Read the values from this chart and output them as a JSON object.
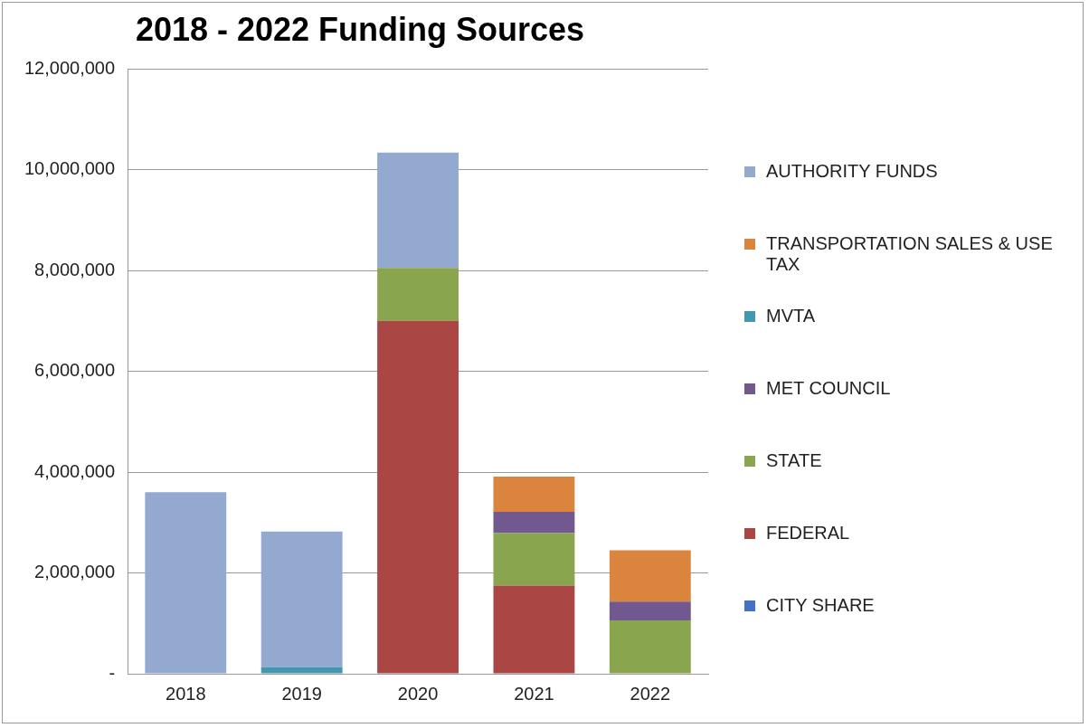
{
  "chart_data": {
    "type": "bar",
    "title": "2018 - 2022 Funding Sources",
    "stacked": true,
    "categories": [
      "2018",
      "2019",
      "2020",
      "2021",
      "2022"
    ],
    "series": [
      {
        "name": "CITY SHARE",
        "color": "#4472c4",
        "values": [
          0,
          0,
          0,
          0,
          0
        ]
      },
      {
        "name": "FEDERAL",
        "color": "#aa4643",
        "values": [
          0,
          0,
          7000000.0,
          1750000.0,
          0
        ]
      },
      {
        "name": "STATE",
        "color": "#89a54e",
        "values": [
          0,
          0,
          1050000.0,
          1040000.0,
          1060000.0
        ]
      },
      {
        "name": "MET COUNCIL",
        "color": "#71588f",
        "values": [
          0,
          0,
          0,
          420000.0,
          370000.0
        ]
      },
      {
        "name": "MVTA",
        "color": "#4198af",
        "values": [
          0,
          130000.0,
          0,
          0,
          0
        ]
      },
      {
        "name": "TRANSPORTATION SALES & USE TAX",
        "color": "#db843d",
        "values": [
          0,
          0,
          0,
          700000.0,
          1020000.0
        ]
      },
      {
        "name": "AUTHORITY FUNDS",
        "color": "#93a9cf",
        "values": [
          3600000.0,
          2690000.0,
          2290000.0,
          0,
          0
        ]
      }
    ],
    "ylim": [
      0,
      12000000
    ],
    "yticks": [
      {
        "value": 0,
        "label": "-"
      },
      {
        "value": 2000000,
        "label": "2,000,000"
      },
      {
        "value": 4000000,
        "label": "4,000,000"
      },
      {
        "value": 6000000,
        "label": "6,000,000"
      },
      {
        "value": 8000000,
        "label": "8,000,000"
      },
      {
        "value": 10000000,
        "label": "10,000,000"
      },
      {
        "value": 12000000,
        "label": "12,000,000"
      }
    ],
    "grid": "y",
    "legend": "right"
  }
}
